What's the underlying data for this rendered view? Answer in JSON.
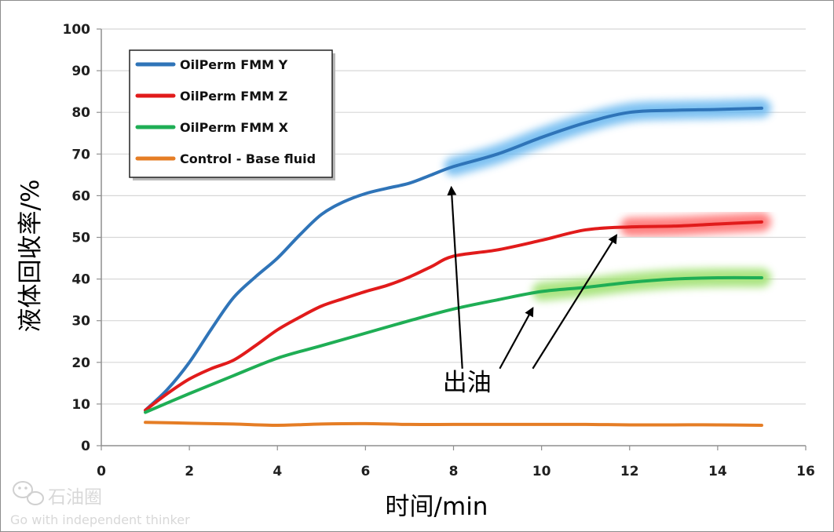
{
  "chart_data": {
    "type": "line",
    "title": "",
    "xlabel": "时间/min",
    "ylabel": "液体回收率/%",
    "xlim": [
      0,
      16
    ],
    "ylim": [
      0,
      100
    ],
    "x_ticks": [
      0,
      2,
      4,
      6,
      8,
      10,
      12,
      14,
      16
    ],
    "y_ticks": [
      0,
      10,
      20,
      30,
      40,
      50,
      60,
      70,
      80,
      90,
      100
    ],
    "grid": "horizontal",
    "legend_position": "top-left",
    "series": [
      {
        "name": "OilPerm FMM Y",
        "color": "#2f74b8",
        "x": [
          1,
          1.5,
          2,
          2.5,
          3,
          3.5,
          4,
          4.5,
          5,
          5.5,
          6,
          6.5,
          7,
          7.5,
          8,
          9,
          10,
          11,
          12,
          13,
          14,
          15
        ],
        "y": [
          8.5,
          13.5,
          20,
          28,
          35.5,
          40.5,
          45,
          50.5,
          55.5,
          58.5,
          60.5,
          61.8,
          63,
          65,
          67,
          70,
          74,
          77.5,
          80,
          80.5,
          80.7,
          81
        ],
        "highlight_from_x": 8,
        "highlight_color": "#67b7f0"
      },
      {
        "name": "OilPerm FMM Z",
        "color": "#e11b1b",
        "x": [
          1,
          1.5,
          2,
          2.5,
          3,
          3.5,
          4,
          4.5,
          5,
          5.5,
          6,
          6.5,
          7,
          7.5,
          8,
          9,
          10,
          11,
          12,
          13,
          14,
          15
        ],
        "y": [
          8.5,
          12.5,
          16,
          18.5,
          20.5,
          24,
          27.8,
          30.8,
          33.5,
          35.3,
          37,
          38.5,
          40.5,
          43,
          45.5,
          47,
          49.3,
          51.8,
          52.5,
          52.7,
          53.2,
          53.7
        ],
        "highlight_from_x": 12,
        "highlight_color": "#ff6b6b"
      },
      {
        "name": "OilPerm FMM X",
        "color": "#1fae55",
        "x": [
          1,
          2,
          3,
          4,
          5,
          6,
          7,
          8,
          9,
          10,
          11,
          12,
          13,
          14,
          15
        ],
        "y": [
          8,
          12.5,
          16.8,
          21,
          24,
          27,
          30,
          32.8,
          35,
          37,
          38,
          39.2,
          40,
          40.3,
          40.3
        ],
        "highlight_from_x": 10,
        "highlight_color": "#9ce06c"
      },
      {
        "name": "Control - Base fluid",
        "color": "#e57d25",
        "x": [
          1,
          2,
          3,
          4,
          5,
          6,
          7,
          8,
          9,
          10,
          11,
          12,
          13,
          14,
          15
        ],
        "y": [
          5.6,
          5.4,
          5.2,
          4.9,
          5.2,
          5.3,
          5.1,
          5.1,
          5.1,
          5.1,
          5.1,
          5.0,
          5.0,
          5.0,
          4.9
        ]
      }
    ],
    "annotations": [
      {
        "text": "出油",
        "anchor": [
          8.2,
          13.2
        ],
        "arrows": [
          {
            "from": [
              8.2,
              18.5
            ],
            "to": [
              7.95,
              62
            ]
          },
          {
            "from": [
              9.05,
              18.5
            ],
            "to": [
              9.8,
              33
            ]
          },
          {
            "from": [
              9.8,
              18.5
            ],
            "to": [
              11.7,
              50.5
            ]
          }
        ]
      }
    ]
  },
  "watermark": {
    "brand": "石油圈",
    "slogan": "Go with independent thinker"
  }
}
